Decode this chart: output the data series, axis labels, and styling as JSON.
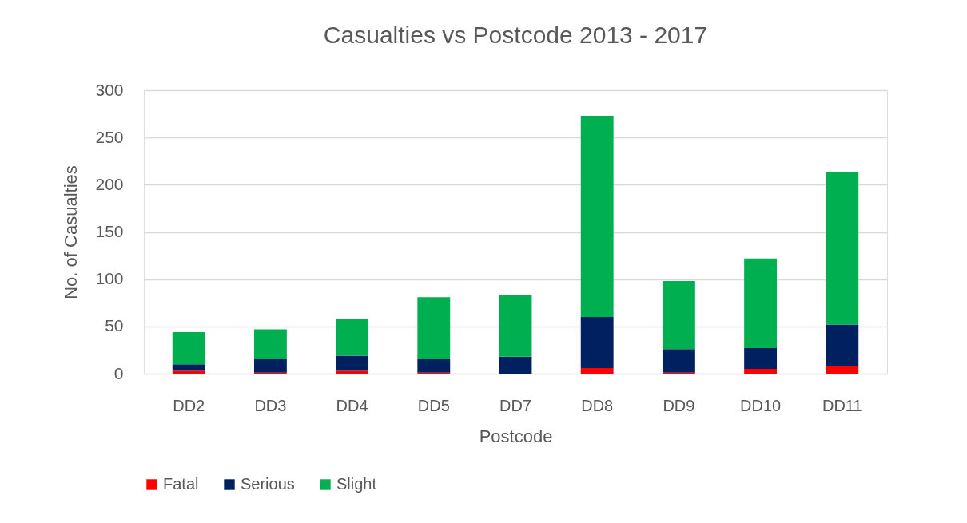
{
  "chart_data": {
    "type": "bar",
    "title": "Casualties vs Postcode 2013 - 2017",
    "xlabel": "Postcode",
    "ylabel": "No. of Casualties",
    "categories": [
      "DD2",
      "DD3",
      "DD4",
      "DD5",
      "DD7",
      "DD8",
      "DD9",
      "DD10",
      "DD11"
    ],
    "stacked": true,
    "series": [
      {
        "name": "Fatal",
        "color": "#ff0000",
        "values": [
          3,
          1,
          3,
          1,
          0,
          6,
          1,
          5,
          8
        ]
      },
      {
        "name": "Serious",
        "color": "#002060",
        "values": [
          7,
          15,
          16,
          15,
          18,
          54,
          25,
          22,
          44
        ]
      },
      {
        "name": "Slight",
        "color": "#00b050",
        "values": [
          34,
          31,
          39,
          65,
          65,
          213,
          72,
          95,
          161
        ]
      }
    ],
    "ylim": [
      0,
      300
    ],
    "yticks": [
      0,
      50,
      100,
      150,
      200,
      250,
      300
    ],
    "grid": "y",
    "legend": "bottom"
  }
}
